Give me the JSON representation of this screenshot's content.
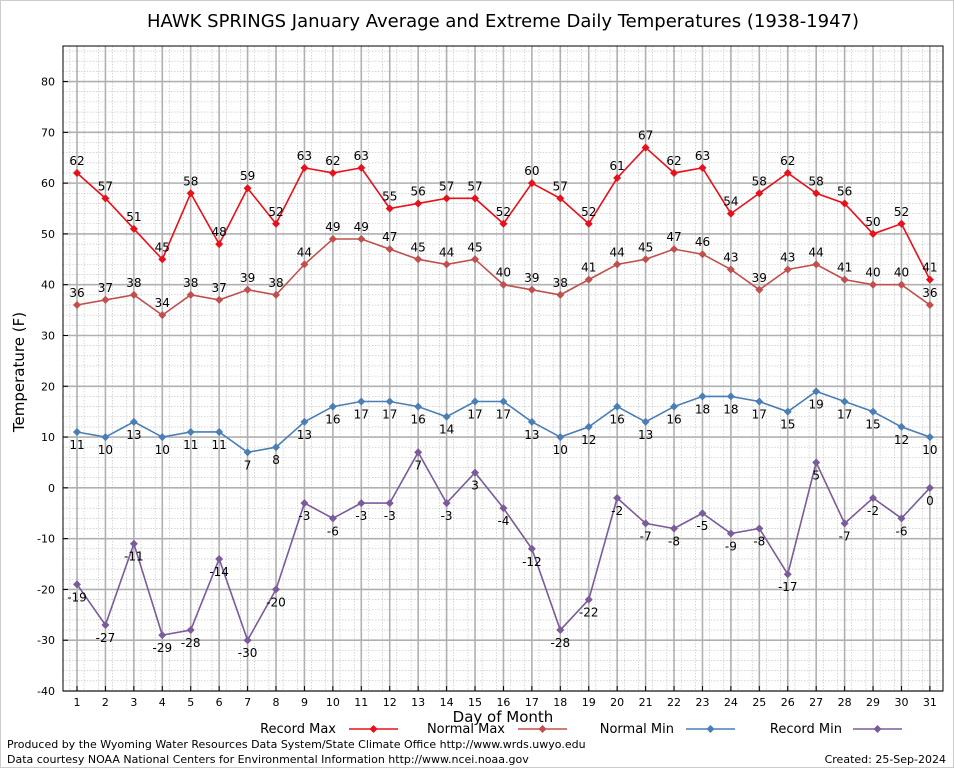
{
  "chart_data": {
    "type": "line",
    "title": "HAWK SPRINGS January Average and Extreme Daily Temperatures (1938-1947)",
    "xlabel": "Day of Month",
    "ylabel": "Temperature (F)",
    "ylim": [
      -40,
      87
    ],
    "yticks": [
      -40,
      -30,
      -20,
      -10,
      0,
      10,
      20,
      30,
      40,
      50,
      60,
      70,
      80
    ],
    "x": [
      1,
      2,
      3,
      4,
      5,
      6,
      7,
      8,
      9,
      10,
      11,
      12,
      13,
      14,
      15,
      16,
      17,
      18,
      19,
      20,
      21,
      22,
      23,
      24,
      25,
      26,
      27,
      28,
      29,
      30,
      31
    ],
    "grid": true,
    "legend_position": "bottom",
    "series": [
      {
        "name": "Record Max",
        "color": "#e8101a",
        "label_pos": "above",
        "values": [
          62,
          57,
          51,
          45,
          58,
          48,
          59,
          52,
          63,
          62,
          63,
          55,
          56,
          57,
          57,
          52,
          60,
          57,
          52,
          61,
          67,
          62,
          63,
          54,
          58,
          62,
          58,
          56,
          50,
          52,
          41
        ]
      },
      {
        "name": "Normal Max",
        "color": "#c0504d",
        "label_pos": "above",
        "values": [
          36,
          37,
          38,
          34,
          38,
          37,
          39,
          38,
          44,
          49,
          49,
          47,
          45,
          44,
          45,
          40,
          39,
          38,
          41,
          44,
          45,
          47,
          46,
          43,
          39,
          43,
          44,
          41,
          40,
          40,
          36
        ]
      },
      {
        "name": "Normal Min",
        "color": "#4a7fb5",
        "label_pos": "below",
        "values": [
          11,
          10,
          13,
          10,
          11,
          11,
          7,
          8,
          13,
          16,
          17,
          17,
          16,
          14,
          17,
          17,
          13,
          10,
          12,
          16,
          13,
          16,
          18,
          18,
          17,
          15,
          19,
          17,
          15,
          12,
          10
        ]
      },
      {
        "name": "Record Min",
        "color": "#7b5b9b",
        "label_pos": "below",
        "values": [
          -19,
          -27,
          -11,
          -29,
          -28,
          -14,
          -30,
          -20,
          -3,
          -6,
          -3,
          -3,
          7,
          -3,
          3,
          -4,
          -12,
          -28,
          -22,
          -2,
          -7,
          -8,
          -5,
          -9,
          -8,
          -17,
          5,
          -7,
          -2,
          -6,
          0
        ]
      }
    ]
  },
  "footer": {
    "produced_by": "Produced by the Wyoming Water Resources Data System/State Climate Office http://www.wrds.uwyo.edu",
    "data_courtesy": "Data courtesy NOAA National Centers for Environmental Information http://www.ncei.noaa.gov",
    "created": "Created:  25-Sep-2024"
  }
}
